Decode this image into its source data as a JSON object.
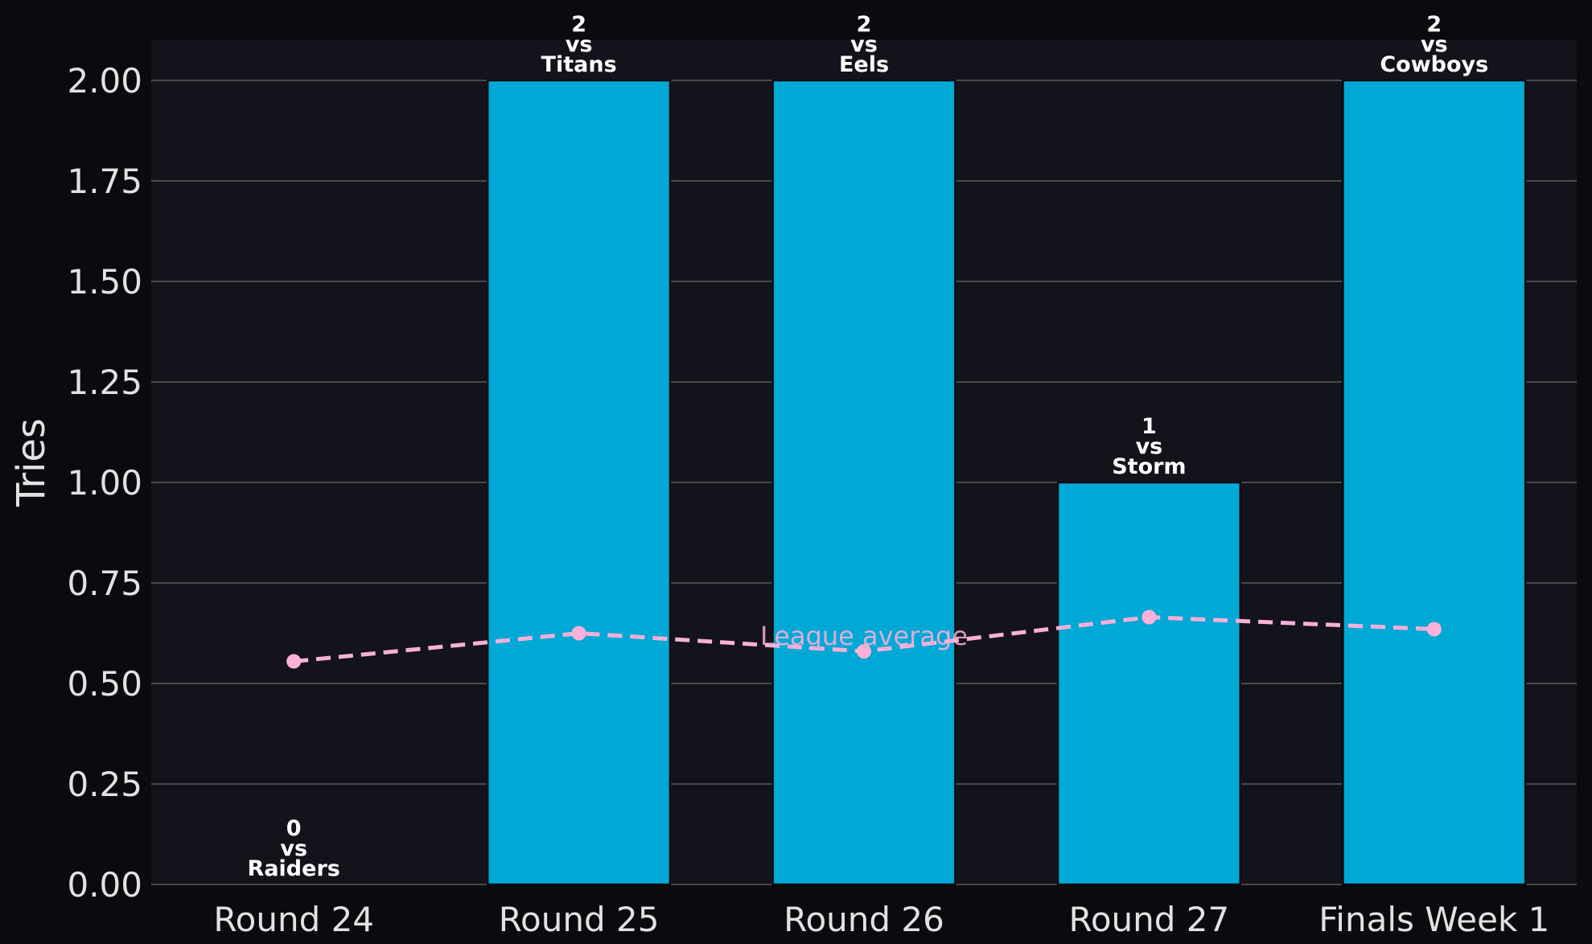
{
  "colors": {
    "page_background": "#0b0b0f",
    "plot_background": "#13131b",
    "bar_fill": "#00a8d6",
    "bar_edge": "#0b0b0f",
    "average_line": "#ffb0d8",
    "gridline": "#5c5c5c",
    "tick_text": "#e2e2e2",
    "label_text": "#ffffff"
  },
  "chart_data": {
    "type": "bar",
    "title": "",
    "xlabel": "",
    "ylabel": "Tries",
    "ylim": [
      0,
      2.1
    ],
    "yticks": [
      0,
      0.25,
      0.5,
      0.75,
      1.0,
      1.25,
      1.5,
      1.75,
      2.0
    ],
    "ytick_labels": [
      "0.00",
      "0.25",
      "0.50",
      "0.75",
      "1.00",
      "1.25",
      "1.50",
      "1.75",
      "2.00"
    ],
    "grid": "horizontal",
    "categories": [
      "Round 24",
      "Round 25",
      "Round 26",
      "Round 27",
      "Finals Week 1"
    ],
    "series": [
      {
        "values": [
          0,
          2,
          2,
          1,
          2
        ],
        "bar_labels": [
          [
            "0",
            "vs",
            "Raiders"
          ],
          [
            "2",
            "vs",
            "Titans"
          ],
          [
            "2",
            "vs",
            "Eels"
          ],
          [
            "1",
            "vs",
            "Storm"
          ],
          [
            "2",
            "vs",
            "Cowboys"
          ]
        ]
      },
      {
        "name": "League average",
        "type": "line",
        "style": "dashed",
        "values": [
          0.555,
          0.625,
          0.58,
          0.665,
          0.635
        ]
      }
    ],
    "annotations": [
      {
        "text": "League average",
        "x": "Round 26",
        "y": 0.62
      }
    ]
  }
}
